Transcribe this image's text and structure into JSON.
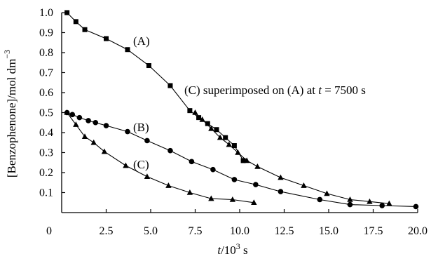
{
  "chart_data": {
    "type": "scatter",
    "xlabel_parts": [
      "t",
      "/10",
      "3",
      " s"
    ],
    "ylabel_parts": [
      "[Benzophenone]/mol dm",
      "−3"
    ],
    "xlim": [
      0,
      20
    ],
    "ylim": [
      0,
      1.0
    ],
    "x_ticks": [
      {
        "value": 0,
        "label": "0"
      },
      {
        "value": 2.5,
        "label": "2.5"
      },
      {
        "value": 5,
        "label": "5.0"
      },
      {
        "value": 7.5,
        "label": "7.5"
      },
      {
        "value": 10,
        "label": "10.0"
      },
      {
        "value": 12.5,
        "label": "12.5"
      },
      {
        "value": 15,
        "label": "15.0"
      },
      {
        "value": 17.5,
        "label": "17.5"
      },
      {
        "value": 20,
        "label": "20.0"
      }
    ],
    "y_ticks": [
      {
        "value": 0.1,
        "label": "0.1"
      },
      {
        "value": 0.2,
        "label": "0.2"
      },
      {
        "value": 0.3,
        "label": "0.3"
      },
      {
        "value": 0.4,
        "label": "0.4"
      },
      {
        "value": 0.5,
        "label": "0.5"
      },
      {
        "value": 0.6,
        "label": "0.6"
      },
      {
        "value": 0.7,
        "label": "0.7"
      },
      {
        "value": 0.8,
        "label": "0.8"
      },
      {
        "value": 0.9,
        "label": "0.9"
      },
      {
        "value": 1.0,
        "label": "1.0"
      }
    ],
    "series": [
      {
        "label": "(A)",
        "marker": "square",
        "x": [
          0.3,
          0.8,
          1.3,
          2.5,
          3.7,
          4.9,
          6.1,
          7.2,
          7.7,
          8.2,
          8.7,
          9.2,
          9.7,
          10.2
        ],
        "y": [
          1.0,
          0.955,
          0.915,
          0.87,
          0.815,
          0.735,
          0.635,
          0.51,
          0.475,
          0.445,
          0.415,
          0.375,
          0.335,
          0.26
        ]
      },
      {
        "label": "(B)",
        "marker": "circle",
        "x": [
          0.3,
          0.6,
          1.0,
          1.5,
          1.9,
          2.5,
          3.7,
          4.8,
          6.1,
          7.3,
          8.5,
          9.7,
          10.9,
          12.3,
          14.5,
          16.2,
          18.0,
          19.9
        ],
        "y": [
          0.5,
          0.49,
          0.475,
          0.46,
          0.45,
          0.435,
          0.405,
          0.36,
          0.31,
          0.255,
          0.215,
          0.165,
          0.14,
          0.105,
          0.065,
          0.04,
          0.035,
          0.03
        ]
      },
      {
        "label": "(C)",
        "marker": "triangle",
        "x": [
          0.3,
          0.8,
          1.3,
          1.8,
          2.4,
          3.6,
          4.8,
          6.0,
          7.2,
          8.4,
          9.6,
          10.8
        ],
        "y": [
          0.5,
          0.44,
          0.38,
          0.35,
          0.305,
          0.235,
          0.18,
          0.135,
          0.1,
          0.07,
          0.065,
          0.05
        ]
      },
      {
        "label": "(C) superimposed on (A)",
        "marker": "triangle",
        "x": [
          7.5,
          7.9,
          8.4,
          8.9,
          9.4,
          9.9,
          10.4,
          11.0,
          12.3,
          13.6,
          14.9,
          16.2,
          17.3,
          18.4
        ],
        "y": [
          0.5,
          0.465,
          0.42,
          0.375,
          0.34,
          0.3,
          0.26,
          0.23,
          0.175,
          0.135,
          0.095,
          0.065,
          0.055,
          0.045
        ]
      }
    ],
    "annotations": [
      {
        "text": "(A)",
        "x": 5.1,
        "y": 0.87
      },
      {
        "text": "(B)",
        "x": 5.1,
        "y": 0.44
      },
      {
        "text": "(C)",
        "x": 5.1,
        "y": 0.235
      },
      {
        "text_parts": [
          "(C) superimposed on (A) at ",
          "t",
          " = 7500 s"
        ],
        "x": 8.6,
        "y": 0.615
      }
    ]
  }
}
